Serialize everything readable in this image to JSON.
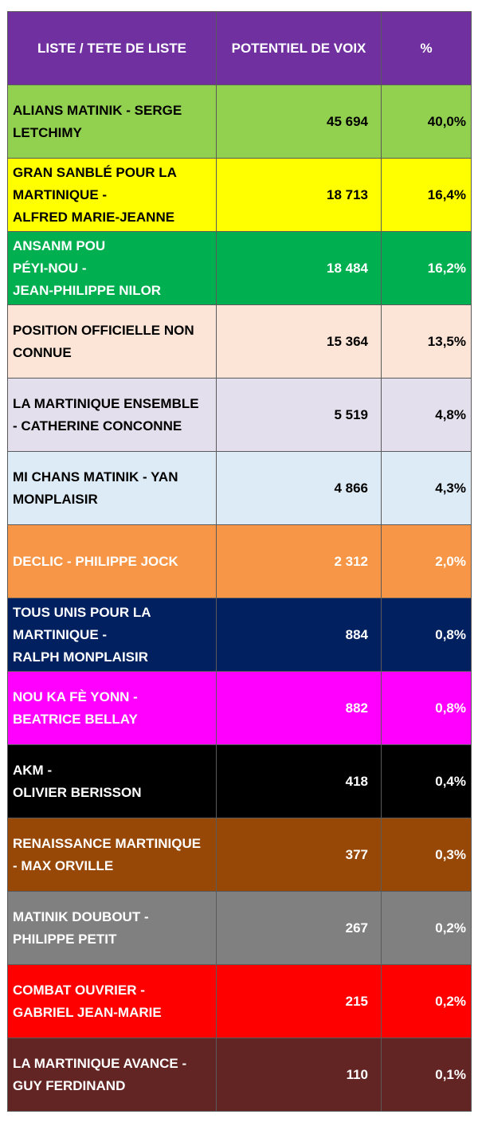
{
  "chart_data": {
    "type": "table",
    "columns": [
      "LISTE /  TETE DE LISTE",
      "POTENTIEL DE VOIX",
      "%"
    ],
    "header_colors": {
      "background": "#7030a0",
      "text": "#ffffff"
    },
    "rows": [
      {
        "name": "ALIANS MATINIK - SERGE\nLETCHIMY",
        "votes": "45 694",
        "pct": "40,0%",
        "bg": "#92d050",
        "fg": "#000000"
      },
      {
        "name": "GRAN SANBLÉ POUR LA\nMARTINIQUE -\nALFRED MARIE-JEANNE",
        "votes": "18 713",
        "pct": "16,4%",
        "bg": "#ffff00",
        "fg": "#000000"
      },
      {
        "name": " ANSANM POU\nPÉYI-NOU -\nJEAN-PHILIPPE NILOR",
        "votes": "18 484",
        "pct": "16,2%",
        "bg": "#00b050",
        "fg": "#ffffff"
      },
      {
        "name": "POSITION OFFICIELLE NON\nCONNUE",
        "votes": "15 364",
        "pct": "13,5%",
        "bg": "#fce4d6",
        "fg": "#000000"
      },
      {
        "name": " LA MARTINIQUE ENSEMBLE\n- CATHERINE CONCONNE",
        "votes": "5 519",
        "pct": "4,8%",
        "bg": "#e4dfec",
        "fg": "#000000"
      },
      {
        "name": "MI CHANS MATINIK - YAN\nMONPLAISIR",
        "votes": "4 866",
        "pct": "4,3%",
        "bg": "#ddebf7",
        "fg": "#000000"
      },
      {
        "name": "DECLIC - PHILIPPE JOCK",
        "votes": "2 312",
        "pct": "2,0%",
        "bg": "#f79646",
        "fg": "#ffffff"
      },
      {
        "name": " TOUS UNIS POUR LA\nMARTINIQUE -\nRALPH MONPLAISIR",
        "votes": "884",
        "pct": "0,8%",
        "bg": "#002060",
        "fg": "#ffffff"
      },
      {
        "name": " NOU KA FÈ YONN -\nBEATRICE BELLAY",
        "votes": "882",
        "pct": "0,8%",
        "bg": "#ff00ff",
        "fg": "#ffffff"
      },
      {
        "name": "AKM -\nOLIVIER BERISSON",
        "votes": "418",
        "pct": "0,4%",
        "bg": "#000000",
        "fg": "#ffffff"
      },
      {
        "name": " RENAISSANCE MARTINIQUE\n- MAX ORVILLE",
        "votes": "377",
        "pct": "0,3%",
        "bg": "#974806",
        "fg": "#ffffff"
      },
      {
        "name": "MATINIK DOUBOUT -\nPHILIPPE PETIT",
        "votes": "267",
        "pct": "0,2%",
        "bg": "#808080",
        "fg": "#ffffff"
      },
      {
        "name": "COMBAT OUVRIER -\nGABRIEL JEAN-MARIE",
        "votes": "215",
        "pct": "0,2%",
        "bg": "#ff0000",
        "fg": "#ffffff"
      },
      {
        "name": " LA MARTINIQUE AVANCE -\nGUY FERDINAND",
        "votes": "110",
        "pct": "0,1%",
        "bg": "#632523",
        "fg": "#ffffff"
      }
    ]
  }
}
